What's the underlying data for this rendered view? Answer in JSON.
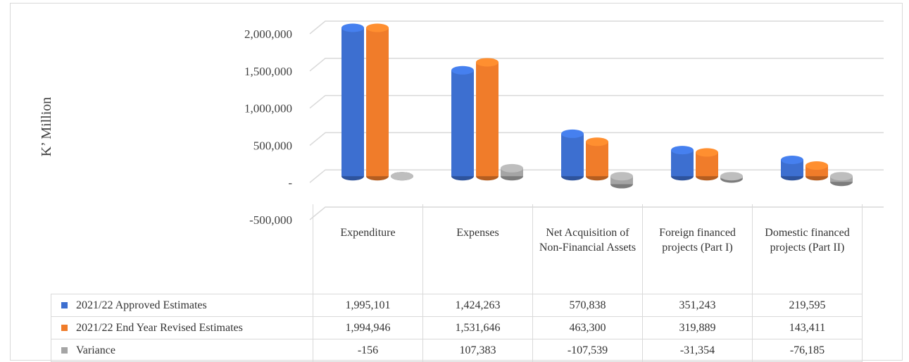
{
  "chart_data": {
    "type": "bar3d",
    "y_axis_label": "K’ Million",
    "categories": [
      "Expenditure",
      "Expenses",
      "Net Acquisition of Non-Financial Assets",
      "Foreign financed projects (Part I)",
      "Domestic financed projects (Part II)"
    ],
    "series": [
      {
        "name": "2021/22 Approved Estimates",
        "color": "#3d6fd0",
        "values": [
          1995101,
          1424263,
          570838,
          351243,
          219595
        ],
        "value_labels": [
          "1,995,101",
          "1,424,263",
          "570,838",
          "351,243",
          "219,595"
        ]
      },
      {
        "name": "2021/22 End Year Revised Estimates",
        "color": "#f07c2a",
        "values": [
          1994946,
          1531646,
          463300,
          319889,
          143411
        ],
        "value_labels": [
          "1,994,946",
          "1,531,646",
          "463,300",
          "319,889",
          "143,411"
        ]
      },
      {
        "name": "Variance",
        "color": "#a5a5a5",
        "values": [
          -156,
          107383,
          -107539,
          -31354,
          -76185
        ],
        "value_labels": [
          "-156",
          "107,383",
          "-107,539",
          "-31,354",
          "-76,185"
        ]
      }
    ],
    "ylim": [
      -500000,
      2000000
    ],
    "yticks": [
      {
        "value": -500000,
        "label": "-500,000"
      },
      {
        "value": 0,
        "label": "-"
      },
      {
        "value": 500000,
        "label": "500,000"
      },
      {
        "value": 1000000,
        "label": "1,000,000"
      },
      {
        "value": 1500000,
        "label": "1,500,000"
      },
      {
        "value": 2000000,
        "label": "2,000,000"
      }
    ],
    "grid": true
  }
}
